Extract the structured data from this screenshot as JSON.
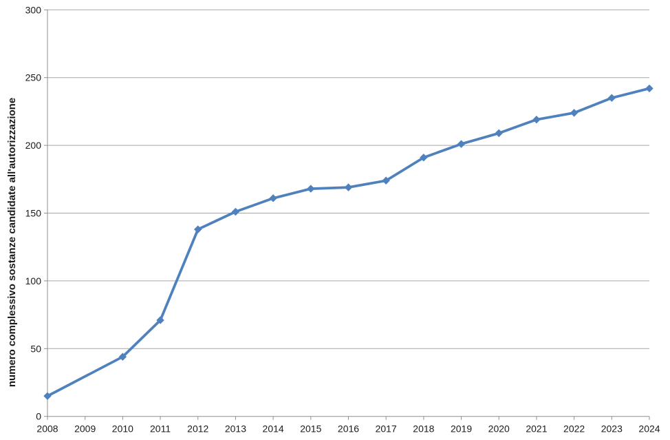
{
  "chart_data": {
    "type": "line",
    "title": "",
    "xlabel": "",
    "ylabel": "numero complessivo sostanze candidate all'autorizzazione",
    "categories": [
      "2008",
      "2009",
      "2010",
      "2011",
      "2012",
      "2013",
      "2014",
      "2015",
      "2016",
      "2017",
      "2018",
      "2019",
      "2020",
      "2021",
      "2022",
      "2023",
      "2024"
    ],
    "values": [
      15,
      null,
      44,
      71,
      138,
      151,
      161,
      168,
      169,
      174,
      191,
      201,
      209,
      219,
      224,
      235,
      242
    ],
    "ylim": [
      0,
      300
    ],
    "yticks": [
      0,
      50,
      100,
      150,
      200,
      250,
      300
    ],
    "grid": "horizontal-major-gridlines",
    "legend": "none",
    "line_color": "#4F81BD",
    "marker": "diamond",
    "gridline_color": "#a6a6a6",
    "axis_color": "#8e8e8e",
    "text_color": "#1a1a1a"
  }
}
